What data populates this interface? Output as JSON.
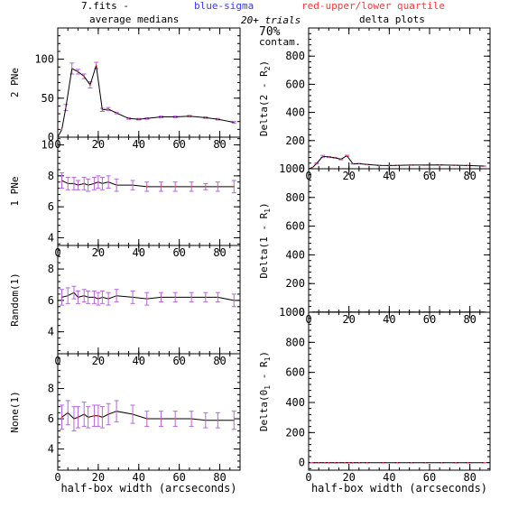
{
  "header": {
    "file": "7.fits  -",
    "blue": "blue-sigma",
    "red": "red-upper/lower quartile",
    "left_title": "average medians",
    "right_title": "delta plots",
    "trials": "20+ trials",
    "percent": "70%",
    "contam": "contam."
  },
  "colors": {
    "line": "#000000",
    "blue": "#3a3aff",
    "red": "#ff3a3a",
    "errbar": "#b266e0"
  },
  "chart_data": [
    {
      "type": "line",
      "ylabel": "2 PNe",
      "xlim": [
        0,
        90
      ],
      "ylim": [
        0,
        140
      ],
      "xticks": [
        "0",
        "20",
        "40",
        "60",
        "80"
      ],
      "xtick_values": [
        0,
        20,
        40,
        60,
        80
      ],
      "yticks": [
        "0",
        "50",
        "100"
      ],
      "ytick_values": [
        0,
        50,
        100
      ],
      "x": [
        0,
        2,
        4,
        7,
        10,
        13,
        16,
        19,
        22,
        25,
        29,
        35,
        40,
        44,
        51,
        58,
        65,
        73,
        79,
        87
      ],
      "values": [
        0,
        10,
        38,
        88,
        84,
        78,
        67,
        92,
        35,
        36,
        31,
        24,
        23,
        24,
        26,
        26,
        27,
        25,
        23,
        19
      ],
      "err": [
        0,
        0,
        4,
        7,
        3,
        3,
        4,
        4,
        2,
        2,
        1,
        1,
        1,
        1,
        1,
        1,
        1,
        1,
        1,
        1
      ]
    },
    {
      "type": "line",
      "ylabel": "1 PNe",
      "xlim": [
        0,
        90
      ],
      "ylim": [
        3.5,
        10.5
      ],
      "xticks": [
        "0",
        "20",
        "40",
        "60",
        "80"
      ],
      "xtick_values": [
        0,
        20,
        40,
        60,
        80
      ],
      "yticks": [
        "4",
        "6",
        "8",
        "10"
      ],
      "ytick_values": [
        4,
        6,
        8,
        10
      ],
      "x": [
        2,
        5,
        8,
        10,
        13,
        15,
        18,
        20,
        22,
        25,
        29,
        37,
        44,
        51,
        58,
        66,
        73,
        79,
        87
      ],
      "values": [
        7.7,
        7.5,
        7.5,
        7.4,
        7.5,
        7.4,
        7.5,
        7.6,
        7.5,
        7.6,
        7.4,
        7.4,
        7.3,
        7.3,
        7.3,
        7.3,
        7.3,
        7.3,
        7.3
      ],
      "err": [
        0.5,
        0.4,
        0.4,
        0.3,
        0.4,
        0.4,
        0.4,
        0.4,
        0.4,
        0.4,
        0.4,
        0.3,
        0.3,
        0.3,
        0.3,
        0.3,
        0.2,
        0.3,
        0.4
      ]
    },
    {
      "type": "line",
      "ylabel": "Random(1)",
      "xlim": [
        0,
        90
      ],
      "ylim": [
        2.6,
        9.5
      ],
      "xticks": [
        "0",
        "20",
        "40",
        "60",
        "80"
      ],
      "xtick_values": [
        0,
        20,
        40,
        60,
        80
      ],
      "yticks": [
        "4",
        "6",
        "8"
      ],
      "ytick_values": [
        4,
        6,
        8
      ],
      "x": [
        2,
        5,
        8,
        10,
        13,
        15,
        18,
        20,
        22,
        25,
        29,
        37,
        44,
        51,
        58,
        66,
        73,
        79,
        87
      ],
      "values": [
        6.2,
        6.3,
        6.5,
        6.2,
        6.3,
        6.2,
        6.2,
        6.1,
        6.2,
        6.1,
        6.3,
        6.2,
        6.1,
        6.2,
        6.2,
        6.2,
        6.2,
        6.2,
        6.0
      ],
      "err": [
        0.5,
        0.5,
        0.4,
        0.4,
        0.4,
        0.4,
        0.4,
        0.4,
        0.4,
        0.4,
        0.4,
        0.4,
        0.4,
        0.3,
        0.3,
        0.3,
        0.3,
        0.3,
        0.4
      ]
    },
    {
      "type": "line",
      "ylabel": "None(1)",
      "xlim": [
        0,
        90
      ],
      "ylim": [
        2.6,
        10.3
      ],
      "xticks": [
        "0",
        "20",
        "40",
        "60",
        "80"
      ],
      "xtick_values": [
        0,
        20,
        40,
        60,
        80
      ],
      "yticks": [
        "4",
        "6",
        "8"
      ],
      "ytick_values": [
        4,
        6,
        8
      ],
      "xlabel": "half-box width (arcseconds)",
      "x": [
        2,
        5,
        8,
        10,
        13,
        15,
        18,
        20,
        22,
        25,
        29,
        37,
        44,
        51,
        58,
        66,
        73,
        79,
        87
      ],
      "values": [
        6.1,
        6.4,
        6.0,
        6.1,
        6.3,
        6.1,
        6.2,
        6.2,
        6.1,
        6.3,
        6.5,
        6.3,
        6.0,
        6.0,
        6.0,
        6.0,
        5.9,
        5.9,
        5.9
      ],
      "err": [
        0.8,
        0.8,
        0.8,
        0.7,
        0.8,
        0.7,
        0.7,
        0.7,
        0.7,
        0.7,
        0.7,
        0.6,
        0.5,
        0.5,
        0.5,
        0.5,
        0.5,
        0.5,
        0.6
      ]
    },
    {
      "type": "line",
      "ylabel": "Delta(2 - R",
      "ylabel_sub": "2",
      "ylabel_end": ")",
      "xlim": [
        0,
        90
      ],
      "ylim": [
        0,
        1000
      ],
      "xticks": [
        "0",
        "20",
        "40",
        "60",
        "80"
      ],
      "xtick_values": [
        0,
        20,
        40,
        60,
        80
      ],
      "yticks": [
        "0",
        "200",
        "400",
        "600",
        "800"
      ],
      "ytick_values": [
        0,
        200,
        400,
        600,
        800
      ],
      "x": [
        0,
        2,
        4,
        7,
        10,
        13,
        16,
        19,
        22,
        25,
        29,
        35,
        40,
        44,
        51,
        58,
        65,
        73,
        79,
        87
      ],
      "values": [
        0,
        10,
        38,
        88,
        84,
        78,
        67,
        92,
        35,
        36,
        31,
        24,
        23,
        24,
        26,
        26,
        27,
        25,
        23,
        19
      ],
      "err": [
        0,
        0,
        4,
        7,
        3,
        3,
        4,
        4,
        2,
        2,
        1,
        1,
        1,
        1,
        1,
        1,
        1,
        1,
        1,
        1
      ]
    },
    {
      "type": "line",
      "ylabel": "Delta(1 - R",
      "ylabel_sub": "1",
      "ylabel_end": ")",
      "xlim": [
        0,
        90
      ],
      "ylim": [
        0,
        1000
      ],
      "xticks": [
        "0",
        "20",
        "40",
        "60",
        "80"
      ],
      "xtick_values": [
        0,
        20,
        40,
        60,
        80
      ],
      "yticks": [
        "0",
        "200",
        "400",
        "600",
        "800",
        "1000"
      ],
      "ytick_values": [
        0,
        200,
        400,
        600,
        800,
        1000
      ],
      "x": [
        2,
        5,
        8,
        10,
        13,
        15,
        18,
        20,
        22,
        25,
        29,
        37,
        44,
        51,
        58,
        66,
        73,
        79,
        87
      ],
      "values": [
        1.5,
        1.2,
        1.0,
        1.2,
        1.2,
        1.2,
        1.3,
        1.5,
        1.3,
        1.5,
        1.1,
        1.2,
        1.2,
        1.1,
        1.1,
        1.1,
        1.1,
        1.1,
        1.3
      ],
      "err": [
        1,
        1,
        1,
        1,
        1,
        1,
        1,
        1,
        1,
        1,
        1,
        1,
        1,
        1,
        1,
        1,
        1,
        1,
        1
      ]
    },
    {
      "type": "line",
      "ylabel": "Delta(0",
      "ylabel_sub": "1",
      "ylabel_end": " - R",
      "ylabel_sub2": "1",
      "ylabel_end2": ")",
      "xlim": [
        0,
        90
      ],
      "ylim": [
        -50,
        1000
      ],
      "xlabel": "half-box width (arcseconds)",
      "xticks": [
        "0",
        "20",
        "40",
        "60",
        "80"
      ],
      "xtick_values": [
        0,
        20,
        40,
        60,
        80
      ],
      "yticks": [
        "0",
        "200",
        "400",
        "600",
        "800",
        "1000"
      ],
      "ytick_values": [
        0,
        200,
        400,
        600,
        800,
        1000
      ],
      "x": [
        2,
        5,
        8,
        10,
        13,
        15,
        18,
        20,
        22,
        25,
        29,
        37,
        44,
        51,
        58,
        66,
        73,
        79,
        87
      ],
      "values": [
        0,
        0,
        0,
        0,
        0,
        0,
        0,
        0,
        0,
        0,
        0,
        0,
        0,
        0,
        0,
        0,
        0,
        0,
        0
      ],
      "err": [
        1,
        1,
        1,
        1,
        1,
        1,
        1,
        1,
        1,
        1,
        1,
        1,
        1,
        1,
        1,
        1,
        1,
        1,
        1
      ]
    }
  ]
}
